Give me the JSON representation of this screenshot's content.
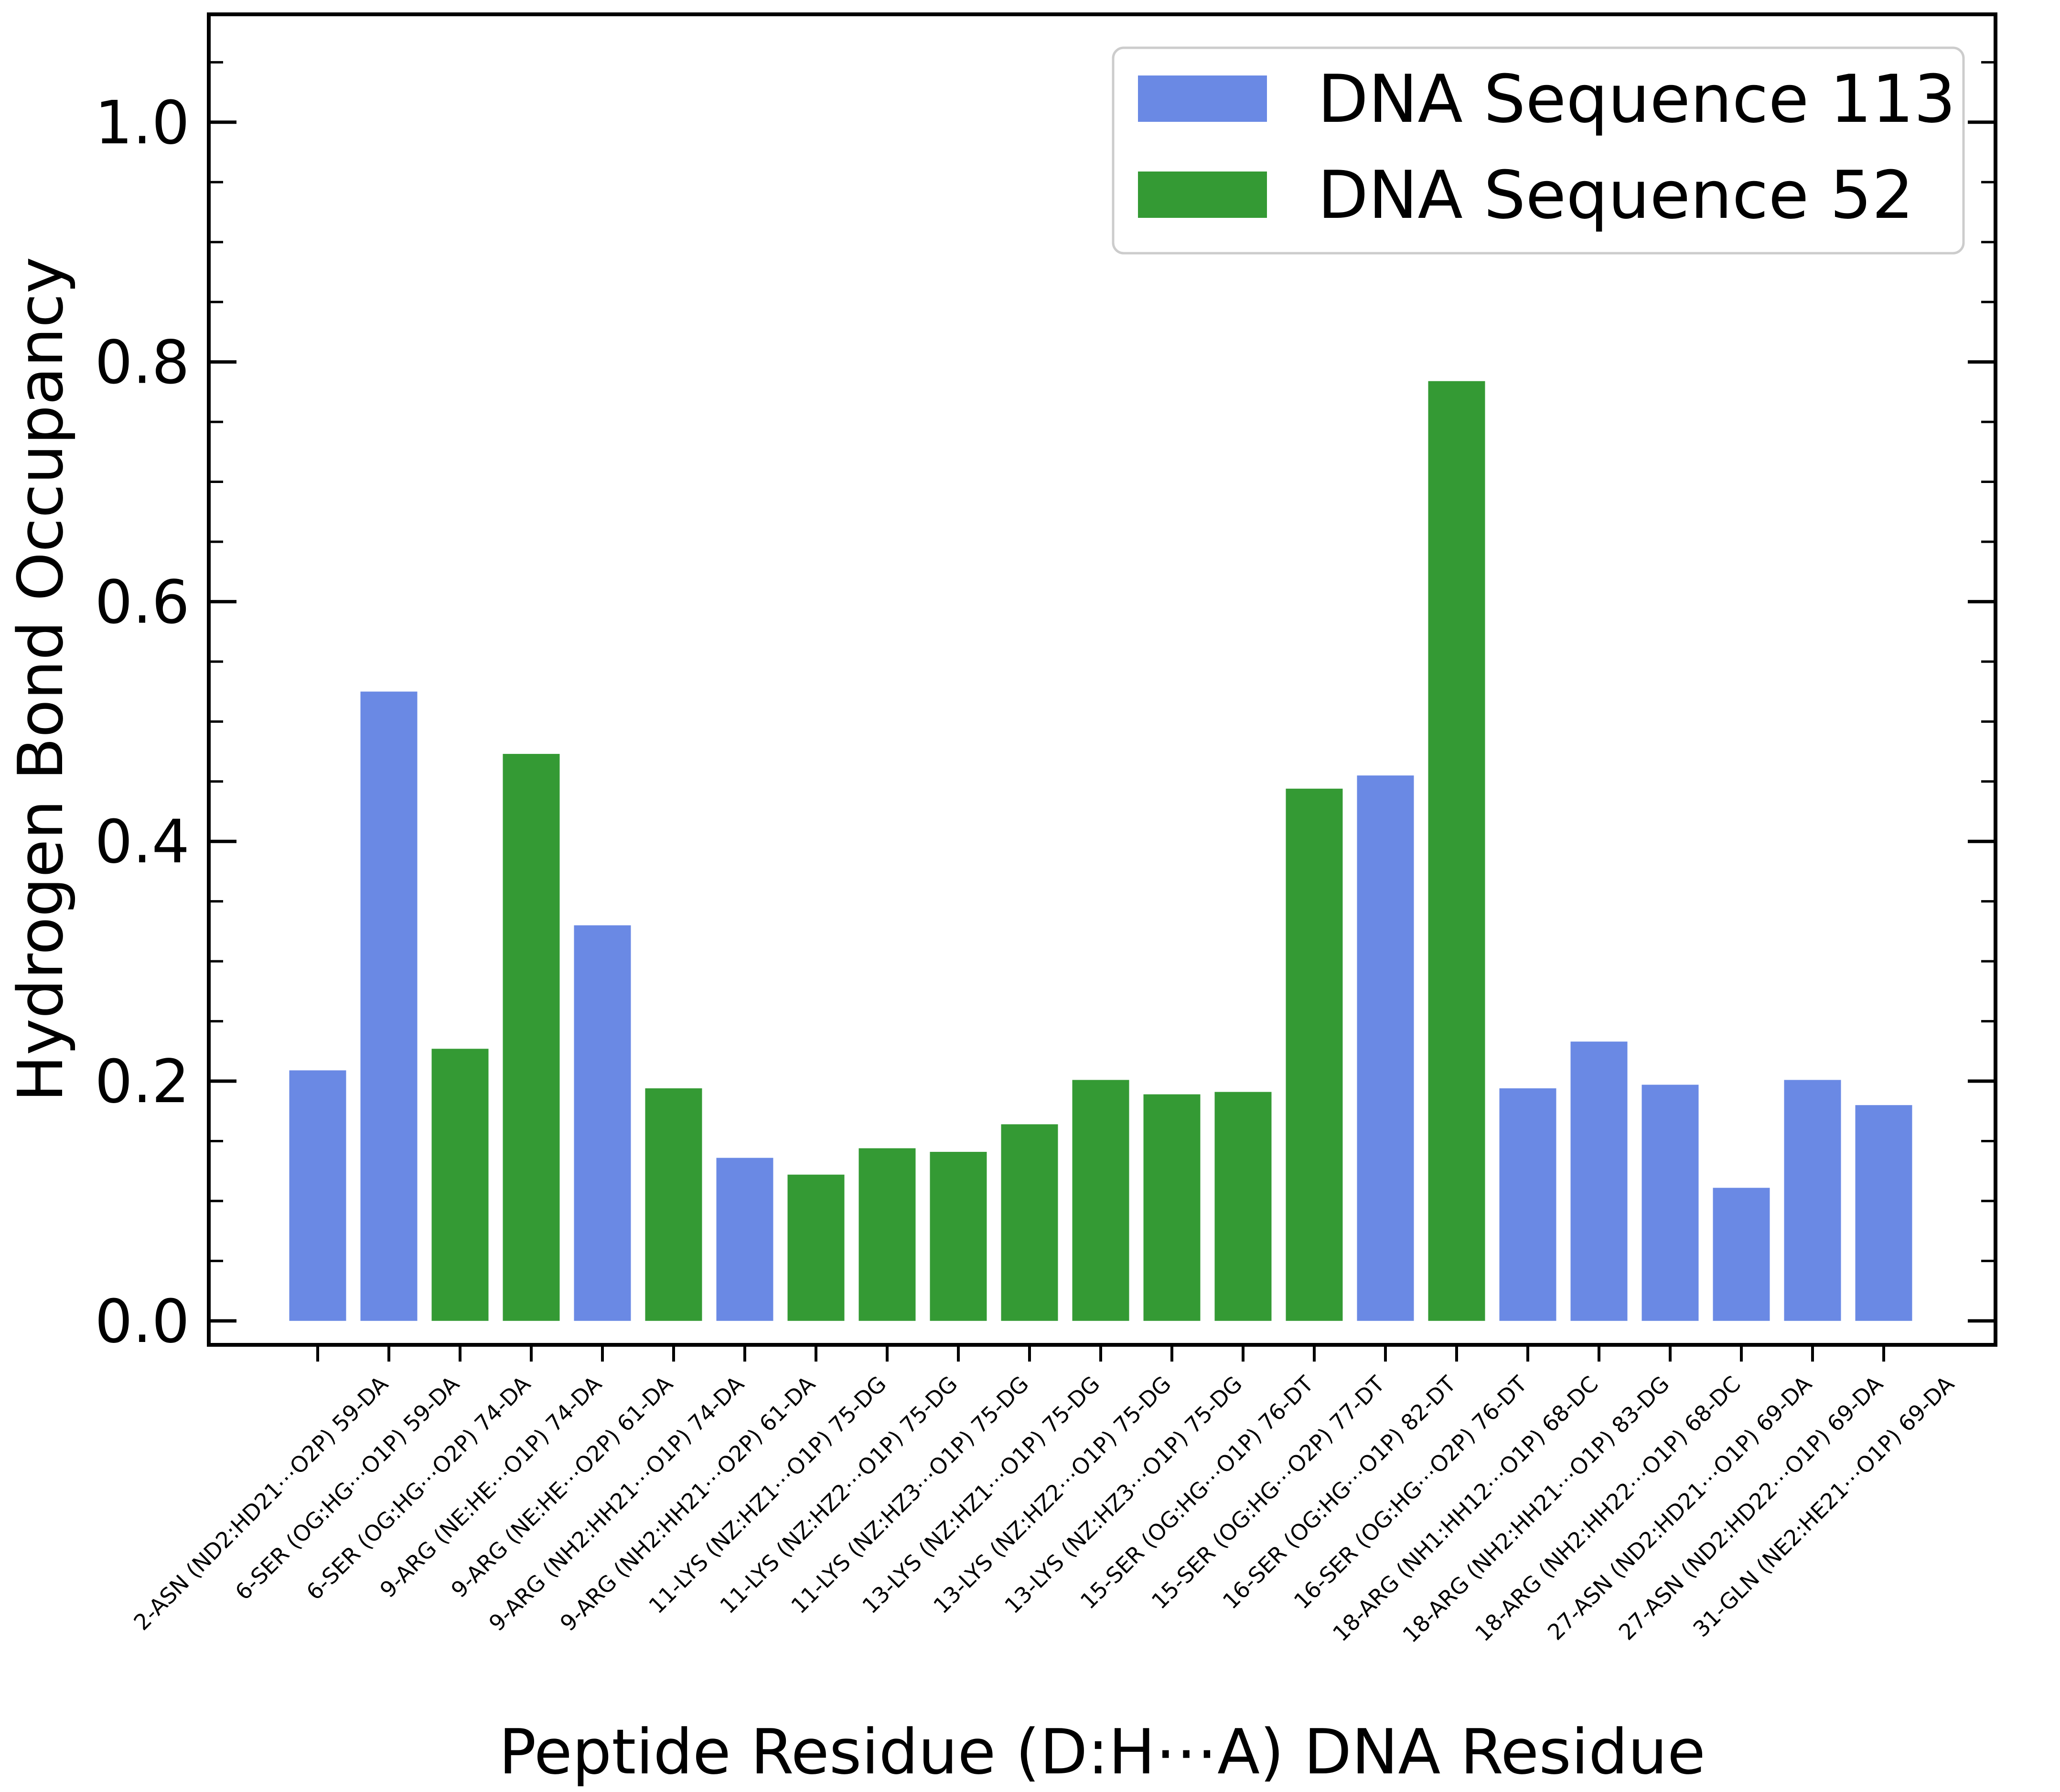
{
  "chart_data": {
    "type": "bar",
    "title": "",
    "xlabel": "Peptide Residue (D:H⋯A) DNA Residue",
    "ylabel": "Hydrogen Bond Occupancy",
    "ylim": [
      -0.02,
      1.09
    ],
    "yticks": [
      "0.0",
      "0.2",
      "0.4",
      "0.6",
      "0.8",
      "1.0"
    ],
    "grid": false,
    "legend_position": "top-right",
    "series": [
      {
        "name": "DNA Sequence 113",
        "color": "#6a89e4"
      },
      {
        "name": "DNA Sequence 52",
        "color": "#349a34"
      }
    ],
    "categories": [
      "2-ASN (ND2:HD21⋯O2P) 59-DA",
      "6-SER (OG:HG⋯O1P) 59-DA",
      "6-SER (OG:HG⋯O2P) 74-DA",
      "9-ARG (NE:HE⋯O1P) 74-DA",
      "9-ARG (NE:HE⋯O2P) 61-DA",
      "9-ARG (NH2:HH21⋯O1P) 74-DA",
      "9-ARG (NH2:HH21⋯O2P) 61-DA",
      "11-LYS (NZ:HZ1⋯O1P) 75-DG",
      "11-LYS (NZ:HZ2⋯O1P) 75-DG",
      "11-LYS (NZ:HZ3⋯O1P) 75-DG",
      "13-LYS (NZ:HZ1⋯O1P) 75-DG",
      "13-LYS (NZ:HZ2⋯O1P) 75-DG",
      "13-LYS (NZ:HZ3⋯O1P) 75-DG",
      "15-SER (OG:HG⋯O1P) 76-DT",
      "15-SER (OG:HG⋯O2P) 77-DT",
      "16-SER (OG:HG⋯O1P) 82-DT",
      "16-SER (OG:HG⋯O2P) 76-DT",
      "18-ARG (NH1:HH12⋯O1P) 68-DC",
      "18-ARG (NH2:HH21⋯O1P) 83-DG",
      "18-ARG (NH2:HH22⋯O1P) 68-DC",
      "27-ASN (ND2:HD21⋯O1P) 69-DA",
      "27-ASN (ND2:HD22⋯O1P) 69-DA",
      "31-GLN (NE2:HE21⋯O1P) 69-DA"
    ],
    "bars": [
      {
        "value": 0.209,
        "series": 0
      },
      {
        "value": 0.525,
        "series": 0
      },
      {
        "value": 0.227,
        "series": 1
      },
      {
        "value": 0.473,
        "series": 1
      },
      {
        "value": 0.33,
        "series": 0
      },
      {
        "value": 0.194,
        "series": 1
      },
      {
        "value": 0.136,
        "series": 0
      },
      {
        "value": 0.122,
        "series": 1
      },
      {
        "value": 0.144,
        "series": 1
      },
      {
        "value": 0.141,
        "series": 1
      },
      {
        "value": 0.164,
        "series": 1
      },
      {
        "value": 0.201,
        "series": 1
      },
      {
        "value": 0.189,
        "series": 1
      },
      {
        "value": 0.191,
        "series": 1
      },
      {
        "value": 0.444,
        "series": 1
      },
      {
        "value": 0.455,
        "series": 0
      },
      {
        "value": 0.784,
        "series": 1
      },
      {
        "value": 0.194,
        "series": 0
      },
      {
        "value": 0.233,
        "series": 0
      },
      {
        "value": 0.197,
        "series": 0
      },
      {
        "value": 0.111,
        "series": 0
      },
      {
        "value": 0.201,
        "series": 0
      },
      {
        "value": 0.18,
        "series": 0
      }
    ]
  }
}
